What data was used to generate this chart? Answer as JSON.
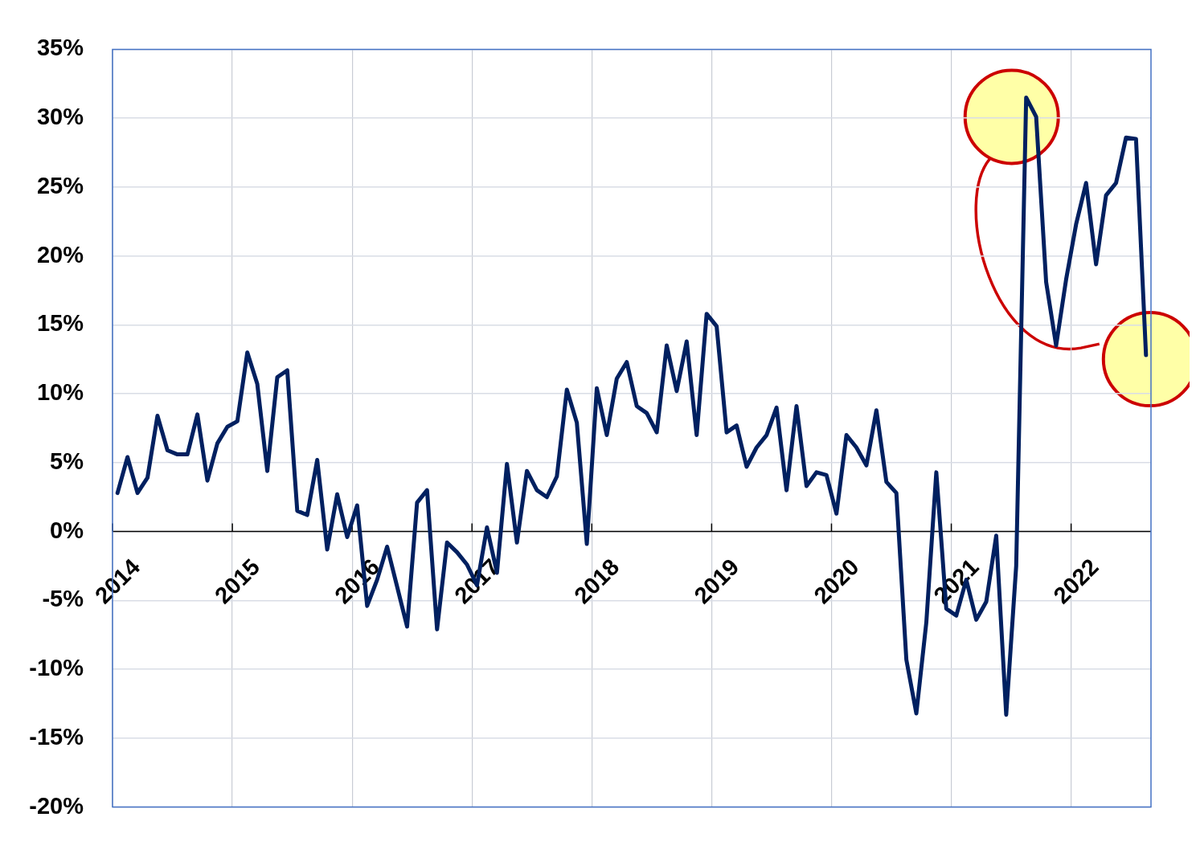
{
  "chart_data": {
    "type": "line",
    "categories": [
      "2014",
      null,
      null,
      null,
      null,
      null,
      null,
      null,
      null,
      null,
      null,
      null,
      "2015",
      null,
      null,
      null,
      null,
      null,
      null,
      null,
      null,
      null,
      null,
      null,
      "2016",
      null,
      null,
      null,
      null,
      null,
      null,
      null,
      null,
      null,
      null,
      null,
      "2017",
      null,
      null,
      null,
      null,
      null,
      null,
      null,
      null,
      null,
      null,
      null,
      "2018",
      null,
      null,
      null,
      null,
      null,
      null,
      null,
      null,
      null,
      null,
      null,
      "2019",
      null,
      null,
      null,
      null,
      null,
      null,
      null,
      null,
      null,
      null,
      null,
      "2020",
      null,
      null,
      null,
      null,
      null,
      null,
      null,
      null,
      null,
      null,
      null,
      "2021",
      null,
      null,
      null,
      null,
      null,
      null,
      null,
      null,
      null,
      null,
      null,
      "2022",
      null,
      null,
      null,
      null,
      null,
      null,
      null
    ],
    "values": [
      2.8,
      5.4,
      2.8,
      3.9,
      8.4,
      5.9,
      5.6,
      5.6,
      8.5,
      3.7,
      6.4,
      7.6,
      8.0,
      13.0,
      10.7,
      4.4,
      11.2,
      11.7,
      1.5,
      1.2,
      5.2,
      -1.3,
      2.7,
      -0.4,
      1.9,
      -5.4,
      -3.5,
      -1.1,
      -4.0,
      -6.9,
      2.1,
      3.0,
      -7.1,
      -0.8,
      -1.5,
      -2.4,
      -3.9,
      0.3,
      -3.0,
      4.9,
      -0.8,
      4.4,
      3.0,
      2.5,
      4.0,
      10.3,
      7.9,
      -0.9,
      10.4,
      7.0,
      11.1,
      12.3,
      9.1,
      8.6,
      7.2,
      13.5,
      10.2,
      13.8,
      7.0,
      15.8,
      14.9,
      7.2,
      7.7,
      4.7,
      6.1,
      7.0,
      9.0,
      3.0,
      9.1,
      3.3,
      4.3,
      4.1,
      1.3,
      7.0,
      6.1,
      4.8,
      8.8,
      3.6,
      2.8,
      -9.3,
      -13.2,
      -6.6,
      4.3,
      -5.6,
      -6.1,
      -3.5,
      -6.4,
      -5.1,
      -0.3,
      -13.3,
      -2.5,
      31.5,
      30.1,
      18.1,
      13.5,
      18.3,
      22.3,
      25.3,
      19.4,
      24.4,
      25.3,
      28.6,
      28.5,
      12.8
    ],
    "color": "#002060",
    "ylim": [
      -20,
      35
    ],
    "yticks": [
      {
        "value": -20,
        "label": "-20%"
      },
      {
        "value": -15,
        "label": "-15%"
      },
      {
        "value": -10,
        "label": "-10%"
      },
      {
        "value": -5,
        "label": "-5%"
      },
      {
        "value": 0,
        "label": "0%"
      },
      {
        "value": 5,
        "label": "5%"
      },
      {
        "value": 10,
        "label": "10%"
      },
      {
        "value": 15,
        "label": "15%"
      },
      {
        "value": 20,
        "label": "20%"
      },
      {
        "value": 25,
        "label": "25%"
      },
      {
        "value": 30,
        "label": "30%"
      },
      {
        "value": 35,
        "label": "35%"
      }
    ],
    "grid": true,
    "marker": "none",
    "line_style": "solid"
  }
}
